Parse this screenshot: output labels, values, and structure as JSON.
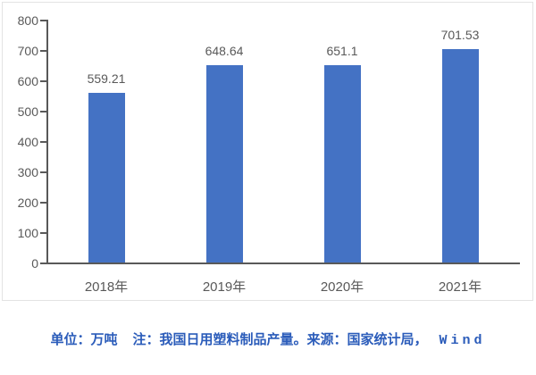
{
  "chart_data": {
    "type": "bar",
    "categories": [
      "2018年",
      "2019年",
      "2020年",
      "2021年"
    ],
    "values": [
      559.21,
      648.64,
      651.1,
      701.53
    ],
    "data_labels": [
      "559.21",
      "648.64",
      "651.1",
      "701.53"
    ],
    "title": "",
    "xlabel": "",
    "ylabel": "",
    "ylim": [
      0,
      800
    ],
    "yticks": [
      800,
      700,
      600,
      500,
      400,
      300,
      200,
      100,
      0
    ],
    "grid": false,
    "legend_position": "none",
    "bar_color": "#4472c4",
    "axis_color": "#595959",
    "text_color": "#595959"
  },
  "caption": {
    "unit_label": "单位：万吨",
    "note_label": "注：我国日用塑料制品产量。来源：国家统计局，",
    "source_label": "Wind",
    "color": "#2b5cba"
  }
}
